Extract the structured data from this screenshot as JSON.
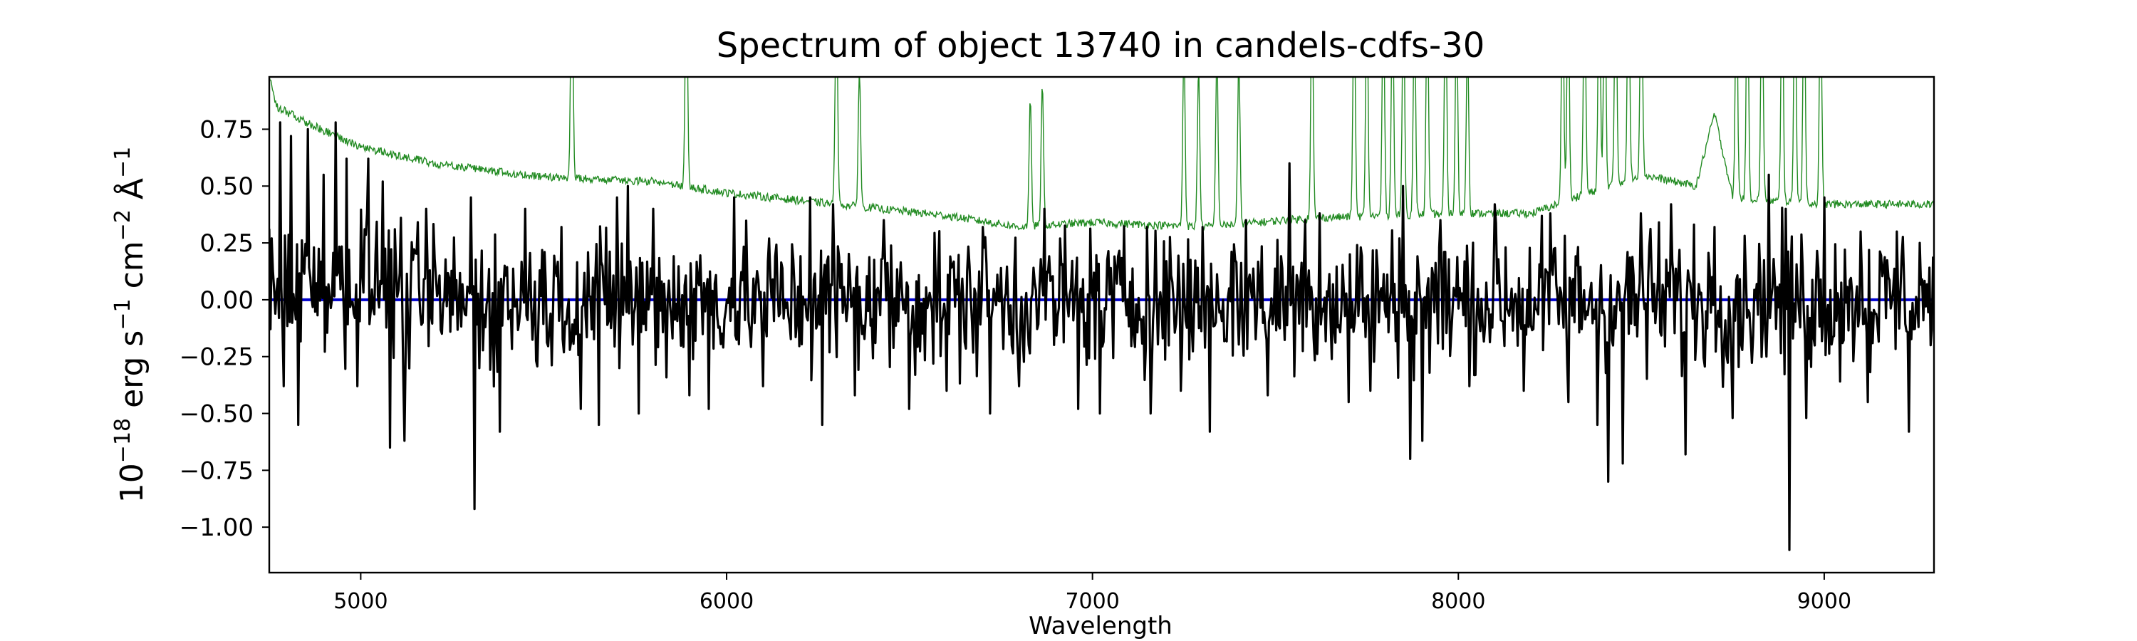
{
  "chart_data": {
    "type": "line",
    "title": "Spectrum of object 13740 in candels-cdfs-30",
    "xlabel": "Wavelength",
    "ylabel": {
      "base": "10",
      "exp": "−18",
      "unit1": " erg s",
      "exp1": "−1",
      "unit2": " cm",
      "exp2": "−2",
      "unit3": " Å",
      "exp3": "−1"
    },
    "xlim": [
      4750,
      9300
    ],
    "ylim": [
      -1.2,
      0.98
    ],
    "x_ticks": [
      5000,
      6000,
      7000,
      8000,
      9000
    ],
    "x_tick_labels": [
      "5000",
      "6000",
      "7000",
      "8000",
      "9000"
    ],
    "y_ticks": [
      -1.0,
      -0.75,
      -0.5,
      -0.25,
      0.0,
      0.25,
      0.5,
      0.75
    ],
    "y_tick_labels": [
      "−1.00",
      "−0.75",
      "−0.50",
      "−0.25",
      "0.00",
      "0.25",
      "0.50",
      "0.75"
    ],
    "grid": false,
    "series": [
      {
        "role": "flux",
        "color": "#000000",
        "x_start": 4750,
        "x_end": 9300,
        "spikes": [
          [
            4780,
            0.78
          ],
          [
            4790,
            -0.38
          ],
          [
            4810,
            0.72
          ],
          [
            4830,
            -0.55
          ],
          [
            4855,
            0.75
          ],
          [
            4900,
            0.55
          ],
          [
            4930,
            0.78
          ],
          [
            4960,
            0.62
          ],
          [
            4990,
            -0.38
          ],
          [
            5020,
            0.62
          ],
          [
            5060,
            0.52
          ],
          [
            5080,
            -0.65
          ],
          [
            5120,
            -0.62
          ],
          [
            5180,
            0.4
          ],
          [
            5300,
            0.45
          ],
          [
            5310,
            -0.92
          ],
          [
            5380,
            -0.58
          ],
          [
            5450,
            0.4
          ],
          [
            5550,
            0.32
          ],
          [
            5600,
            -0.48
          ],
          [
            5650,
            -0.55
          ],
          [
            5700,
            0.45
          ],
          [
            5730,
            0.5
          ],
          [
            5760,
            -0.5
          ],
          [
            5800,
            0.4
          ],
          [
            5900,
            -0.42
          ],
          [
            5950,
            -0.48
          ],
          [
            6020,
            0.45
          ],
          [
            6100,
            -0.38
          ],
          [
            6230,
            0.45
          ],
          [
            6260,
            -0.55
          ],
          [
            6290,
            0.42
          ],
          [
            6350,
            -0.42
          ],
          [
            6430,
            0.35
          ],
          [
            6500,
            -0.48
          ],
          [
            6600,
            -0.4
          ],
          [
            6700,
            0.32
          ],
          [
            6720,
            -0.5
          ],
          [
            6800,
            -0.38
          ],
          [
            6870,
            0.4
          ],
          [
            6960,
            -0.48
          ],
          [
            7020,
            -0.5
          ],
          [
            7150,
            0.32
          ],
          [
            7160,
            -0.5
          ],
          [
            7240,
            -0.4
          ],
          [
            7300,
            0.32
          ],
          [
            7320,
            -0.58
          ],
          [
            7420,
            0.35
          ],
          [
            7480,
            -0.42
          ],
          [
            7540,
            0.6
          ],
          [
            7580,
            0.35
          ],
          [
            7620,
            0.38
          ],
          [
            7700,
            -0.45
          ],
          [
            7760,
            -0.4
          ],
          [
            7850,
            0.5
          ],
          [
            7870,
            -0.7
          ],
          [
            7900,
            -0.62
          ],
          [
            7950,
            0.35
          ],
          [
            8030,
            -0.38
          ],
          [
            8100,
            0.42
          ],
          [
            8180,
            -0.4
          ],
          [
            8250,
            0.38
          ],
          [
            8300,
            -0.45
          ],
          [
            8380,
            -0.55
          ],
          [
            8410,
            -0.8
          ],
          [
            8450,
            -0.72
          ],
          [
            8500,
            0.38
          ],
          [
            8580,
            0.42
          ],
          [
            8620,
            -0.68
          ],
          [
            8700,
            0.32
          ],
          [
            8750,
            -0.52
          ],
          [
            8850,
            0.55
          ],
          [
            8895,
            0.4
          ],
          [
            8905,
            -1.1
          ],
          [
            8950,
            -0.52
          ],
          [
            9000,
            0.45
          ],
          [
            9100,
            0.3
          ],
          [
            9120,
            -0.45
          ],
          [
            9200,
            0.3
          ],
          [
            9230,
            -0.58
          ],
          [
            9260,
            0.25
          ],
          [
            9290,
            -0.2
          ]
        ]
      },
      {
        "role": "model",
        "color": "#0000cc",
        "value": 0.0
      },
      {
        "role": "error",
        "color": "#228b22",
        "continuum": [
          [
            4750,
            0.98
          ],
          [
            4770,
            0.85
          ],
          [
            4850,
            0.78
          ],
          [
            5000,
            0.67
          ],
          [
            5200,
            0.6
          ],
          [
            5500,
            0.54
          ],
          [
            5800,
            0.52
          ],
          [
            6000,
            0.47
          ],
          [
            6300,
            0.42
          ],
          [
            6600,
            0.37
          ],
          [
            6800,
            0.32
          ],
          [
            7000,
            0.34
          ],
          [
            7300,
            0.32
          ],
          [
            7600,
            0.36
          ],
          [
            8000,
            0.38
          ],
          [
            8200,
            0.38
          ],
          [
            8500,
            0.55
          ],
          [
            8650,
            0.5
          ],
          [
            8700,
            0.82
          ],
          [
            8750,
            0.45
          ],
          [
            9000,
            0.42
          ],
          [
            9300,
            0.42
          ]
        ],
        "emission_lines": [
          [
            5577,
            1.0
          ],
          [
            5890,
            1.0
          ],
          [
            6300,
            1.0
          ],
          [
            6363,
            0.6
          ],
          [
            6830,
            0.55
          ],
          [
            6863,
            0.62
          ],
          [
            7250,
            0.8
          ],
          [
            7290,
            0.7
          ],
          [
            7340,
            0.78
          ],
          [
            7400,
            0.72
          ],
          [
            7600,
            1.0
          ],
          [
            7715,
            1.0
          ],
          [
            7750,
            1.0
          ],
          [
            7795,
            1.0
          ],
          [
            7820,
            1.0
          ],
          [
            7850,
            1.0
          ],
          [
            7880,
            0.9
          ],
          [
            7915,
            1.0
          ],
          [
            7965,
            1.0
          ],
          [
            7995,
            0.92
          ],
          [
            8025,
            0.8
          ],
          [
            8285,
            1.0
          ],
          [
            8300,
            1.0
          ],
          [
            8345,
            1.0
          ],
          [
            8385,
            1.0
          ],
          [
            8400,
            1.0
          ],
          [
            8430,
            1.0
          ],
          [
            8465,
            1.0
          ],
          [
            8500,
            1.0
          ],
          [
            8760,
            1.0
          ],
          [
            8790,
            1.0
          ],
          [
            8830,
            1.0
          ],
          [
            8885,
            1.0
          ],
          [
            8920,
            1.0
          ],
          [
            8945,
            1.0
          ],
          [
            8990,
            0.95
          ]
        ]
      }
    ]
  }
}
